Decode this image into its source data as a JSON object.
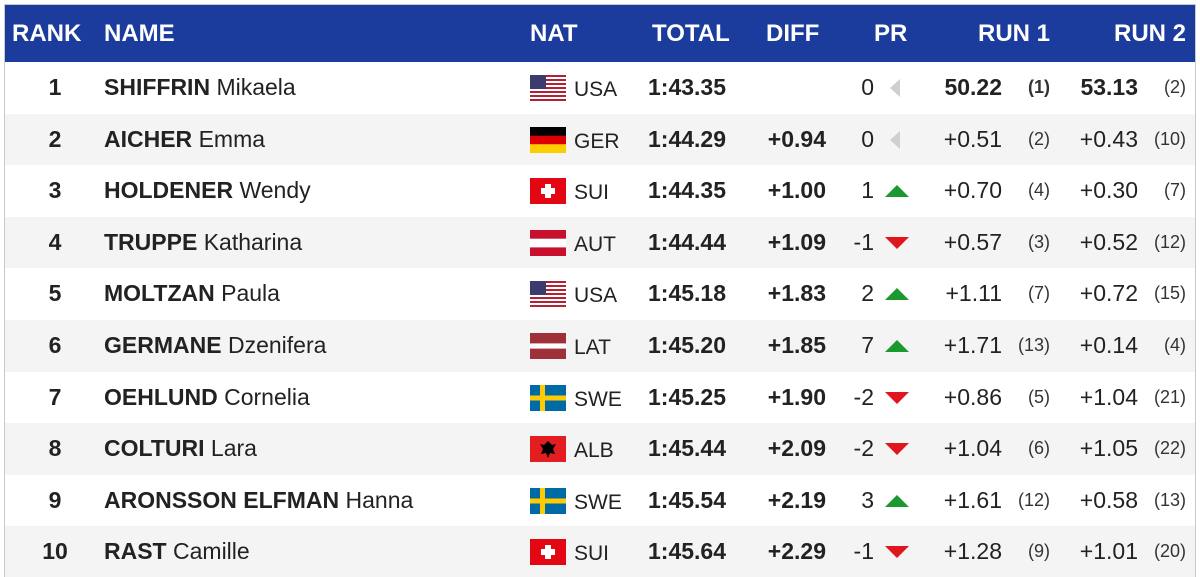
{
  "header": {
    "columns": [
      "RANK",
      "NAME",
      "NAT",
      "TOTAL",
      "DIFF",
      "PR",
      "RUN 1",
      "RUN 2"
    ]
  },
  "table": {
    "rows": [
      {
        "rank": "1",
        "surname": "SHIFFRIN",
        "firstname": "Mikaela",
        "nat": "USA",
        "total": "1:43.35",
        "pr": "0",
        "run1": "50.22",
        "run1_rank": "(1)",
        "run2": "53.13",
        "run2_rank": "(2)"
      },
      {
        "rank": "2",
        "surname": "AICHER",
        "firstname": "Emma",
        "nat": "GER",
        "total": "1:44.29",
        "diff": "+0.94",
        "pr": "0",
        "run1": "+0.51",
        "run1_rank": "(2)",
        "run2": "+0.43",
        "run2_rank": "(10)"
      },
      {
        "rank": "3",
        "surname": "HOLDENER",
        "firstname": "Wendy",
        "nat": "SUI",
        "total": "1:44.35",
        "diff": "+1.00",
        "pr": "1",
        "run1": "+0.70",
        "run1_rank": "(4)",
        "run2": "+0.30",
        "run2_rank": "(7)"
      },
      {
        "rank": "4",
        "surname": "TRUPPE",
        "firstname": "Katharina",
        "nat": "AUT",
        "total": "1:44.44",
        "diff": "+1.09",
        "pr": "-1",
        "run1": "+0.57",
        "run1_rank": "(3)",
        "run2": "+0.52",
        "run2_rank": "(12)"
      },
      {
        "rank": "5",
        "surname": "MOLTZAN",
        "firstname": "Paula",
        "nat": "USA",
        "total": "1:45.18",
        "diff": "+1.83",
        "pr": "2",
        "run1": "+1.11",
        "run1_rank": "(7)",
        "run2": "+0.72",
        "run2_rank": "(15)"
      },
      {
        "rank": "6",
        "surname": "GERMANE",
        "firstname": "Dzenifera",
        "nat": "LAT",
        "total": "1:45.20",
        "diff": "+1.85",
        "pr": "7",
        "run1": "+1.71",
        "run1_rank": "(13)",
        "run2": "+0.14",
        "run2_rank": "(4)"
      },
      {
        "rank": "7",
        "surname": "OEHLUND",
        "firstname": "Cornelia",
        "nat": "SWE",
        "total": "1:45.25",
        "diff": "+1.90",
        "pr": "-2",
        "run1": "+0.86",
        "run1_rank": "(5)",
        "run2": "+1.04",
        "run2_rank": "(21)"
      },
      {
        "rank": "8",
        "surname": "COLTURI",
        "firstname": "Lara",
        "nat": "ALB",
        "total": "1:45.44",
        "diff": "+2.09",
        "pr": "-2",
        "run1": "+1.04",
        "run1_rank": "(6)",
        "run2": "+1.05",
        "run2_rank": "(22)"
      },
      {
        "rank": "9",
        "surname": "ARONSSON ELFMAN",
        "firstname": "Hanna",
        "nat": "SWE",
        "total": "1:45.54",
        "diff": "+2.19",
        "pr": "3",
        "run1": "+1.61",
        "run1_rank": "(12)",
        "run2": "+0.58",
        "run2_rank": "(13)"
      },
      {
        "rank": "10",
        "surname": "RAST",
        "firstname": "Camille",
        "nat": "SUI",
        "total": "1:45.64",
        "diff": "+2.29",
        "pr": "-1",
        "run1": "+1.28",
        "run1_rank": "(9)",
        "run2": "+1.01",
        "run2_rank": "(20)"
      }
    ]
  }
}
